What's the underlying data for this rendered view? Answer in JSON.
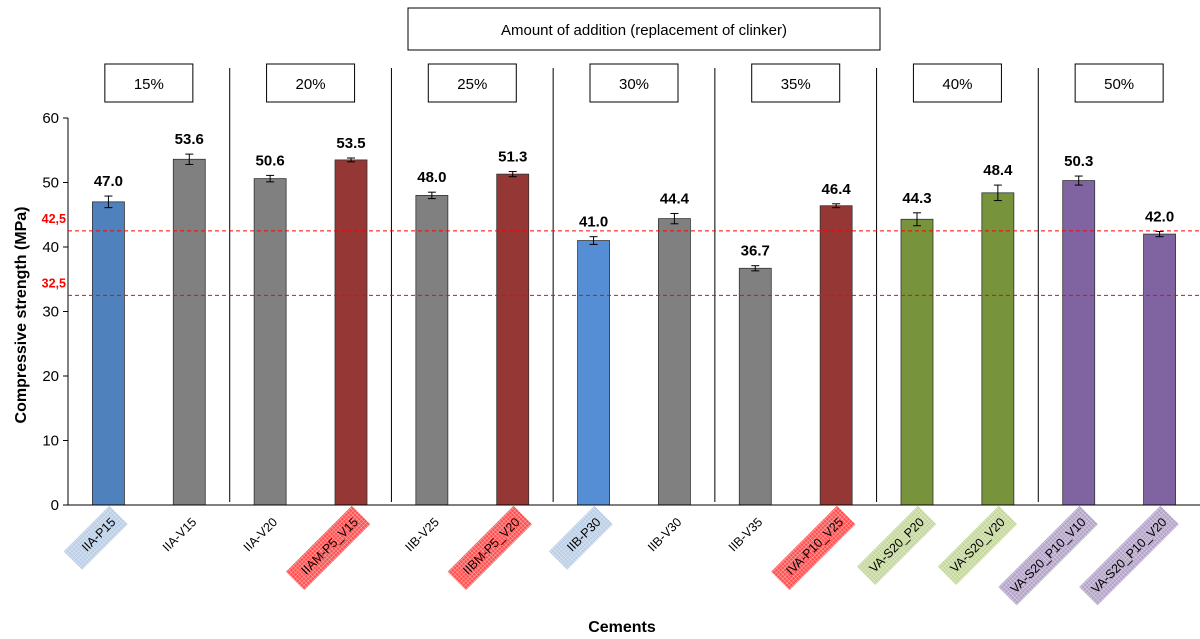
{
  "chart_data": {
    "type": "bar",
    "title": "",
    "header_box": "Amount of addition (replacement of clinker)",
    "groups": [
      {
        "label": "15%",
        "start": 0,
        "end": 1
      },
      {
        "label": "20%",
        "start": 2,
        "end": 3
      },
      {
        "label": "25%",
        "start": 4,
        "end": 5
      },
      {
        "label": "30%",
        "start": 6,
        "end": 7
      },
      {
        "label": "35%",
        "start": 8,
        "end": 9
      },
      {
        "label": "40%",
        "start": 10,
        "end": 11
      },
      {
        "label": "50%",
        "start": 12,
        "end": 13
      }
    ],
    "categories": [
      "IIA-P15",
      "IIA-V15",
      "IIA-V20",
      "IIAM-P5_V15",
      "IIB-V25",
      "IIBM-P5_V20",
      "IIB-P30",
      "IIB-V30",
      "IIB-V35",
      "IVA-P10_V25",
      "VA-S20_P20",
      "VA-S20_V20",
      "VA-S20_P10_V10",
      "VA-S20_P10_V20"
    ],
    "values": [
      47.0,
      53.6,
      50.6,
      53.5,
      48.0,
      51.3,
      41.0,
      44.4,
      36.7,
      46.4,
      44.3,
      48.4,
      50.3,
      42.0
    ],
    "value_labels": [
      "47.0",
      "53.6",
      "50.6",
      "53.5",
      "48.0",
      "51.3",
      "41.0",
      "44.4",
      "36.7",
      "46.4",
      "44.3",
      "48.4",
      "50.3",
      "42.0"
    ],
    "errors": [
      0.9,
      0.8,
      0.5,
      0.3,
      0.5,
      0.4,
      0.6,
      0.8,
      0.4,
      0.3,
      1.0,
      1.2,
      0.7,
      0.4
    ],
    "bar_colors": [
      "#4f81bd",
      "#808080",
      "#808080",
      "#953735",
      "#808080",
      "#953735",
      "#558ed5",
      "#808080",
      "#808080",
      "#953735",
      "#77933c",
      "#77933c",
      "#8064a2",
      "#8064a2"
    ],
    "category_highlight_colors": [
      "#b9cde5",
      "",
      "",
      "#ff5050",
      "",
      "#ff5050",
      "#b9cde5",
      "",
      "",
      "#ff5050",
      "#c4d79b",
      "#c4d79b",
      "#b3a2c7",
      "#b3a2c7"
    ],
    "xlabel": "Cements",
    "ylabel": "Compressive strength (MPa)",
    "ylim": [
      0,
      60
    ],
    "yticks": [
      0,
      10,
      20,
      30,
      40,
      50,
      60
    ],
    "reference_lines": [
      {
        "value": 42.5,
        "label": "42,5",
        "color": "#ff0000"
      },
      {
        "value": 32.5,
        "label": "32,5",
        "color": "#ff0000"
      }
    ],
    "grid": false,
    "legend": "none"
  }
}
